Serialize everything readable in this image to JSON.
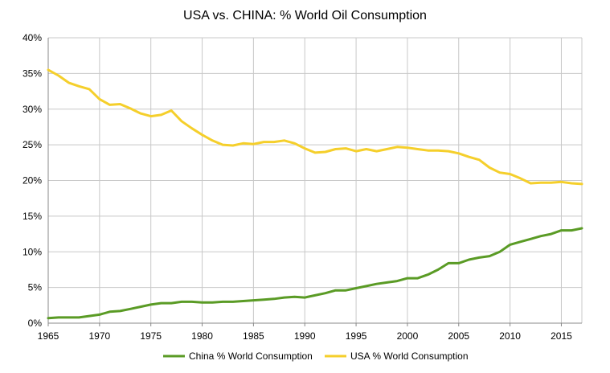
{
  "chart_data": {
    "type": "line",
    "title": "USA vs. CHINA:  % World Oil Consumption",
    "xlabel": "",
    "ylabel": "",
    "xlim": [
      1965,
      2017
    ],
    "ylim": [
      0,
      40
    ],
    "x_ticks": [
      "1965",
      "1970",
      "1975",
      "1980",
      "1985",
      "1990",
      "1995",
      "2000",
      "2005",
      "2010",
      "2015"
    ],
    "y_ticks": [
      "0%",
      "5%",
      "10%",
      "15%",
      "20%",
      "25%",
      "30%",
      "35%",
      "40%"
    ],
    "grid": true,
    "legend_position": "bottom",
    "x": [
      1965,
      1966,
      1967,
      1968,
      1969,
      1970,
      1971,
      1972,
      1973,
      1974,
      1975,
      1976,
      1977,
      1978,
      1979,
      1980,
      1981,
      1982,
      1983,
      1984,
      1985,
      1986,
      1987,
      1988,
      1989,
      1990,
      1991,
      1992,
      1993,
      1994,
      1995,
      1996,
      1997,
      1998,
      1999,
      2000,
      2001,
      2002,
      2003,
      2004,
      2005,
      2006,
      2007,
      2008,
      2009,
      2010,
      2011,
      2012,
      2013,
      2014,
      2015,
      2016,
      2017
    ],
    "series": [
      {
        "name": "China % World Consumption",
        "color": "#5a9b25",
        "values": [
          0.7,
          0.8,
          0.8,
          0.8,
          1.0,
          1.2,
          1.6,
          1.7,
          2.0,
          2.3,
          2.6,
          2.8,
          2.8,
          3.0,
          3.0,
          2.9,
          2.9,
          3.0,
          3.0,
          3.1,
          3.2,
          3.3,
          3.4,
          3.6,
          3.7,
          3.6,
          3.9,
          4.2,
          4.6,
          4.6,
          4.9,
          5.2,
          5.5,
          5.7,
          5.9,
          6.3,
          6.3,
          6.8,
          7.5,
          8.4,
          8.4,
          8.9,
          9.2,
          9.4,
          10.0,
          11.0,
          11.4,
          11.8,
          12.2,
          12.5,
          13.0,
          13.0,
          13.3
        ]
      },
      {
        "name": "USA % World Consumption",
        "color": "#f5cf2b",
        "values": [
          35.5,
          34.7,
          33.7,
          33.2,
          32.8,
          31.4,
          30.6,
          30.7,
          30.1,
          29.4,
          29.0,
          29.2,
          29.8,
          28.3,
          27.3,
          26.4,
          25.6,
          25.0,
          24.9,
          25.2,
          25.1,
          25.4,
          25.4,
          25.6,
          25.2,
          24.5,
          23.9,
          24.0,
          24.4,
          24.5,
          24.1,
          24.4,
          24.1,
          24.4,
          24.7,
          24.6,
          24.4,
          24.2,
          24.2,
          24.1,
          23.8,
          23.3,
          22.9,
          21.8,
          21.1,
          20.9,
          20.3,
          19.6,
          19.7,
          19.7,
          19.8,
          19.6,
          19.5
        ]
      }
    ]
  }
}
